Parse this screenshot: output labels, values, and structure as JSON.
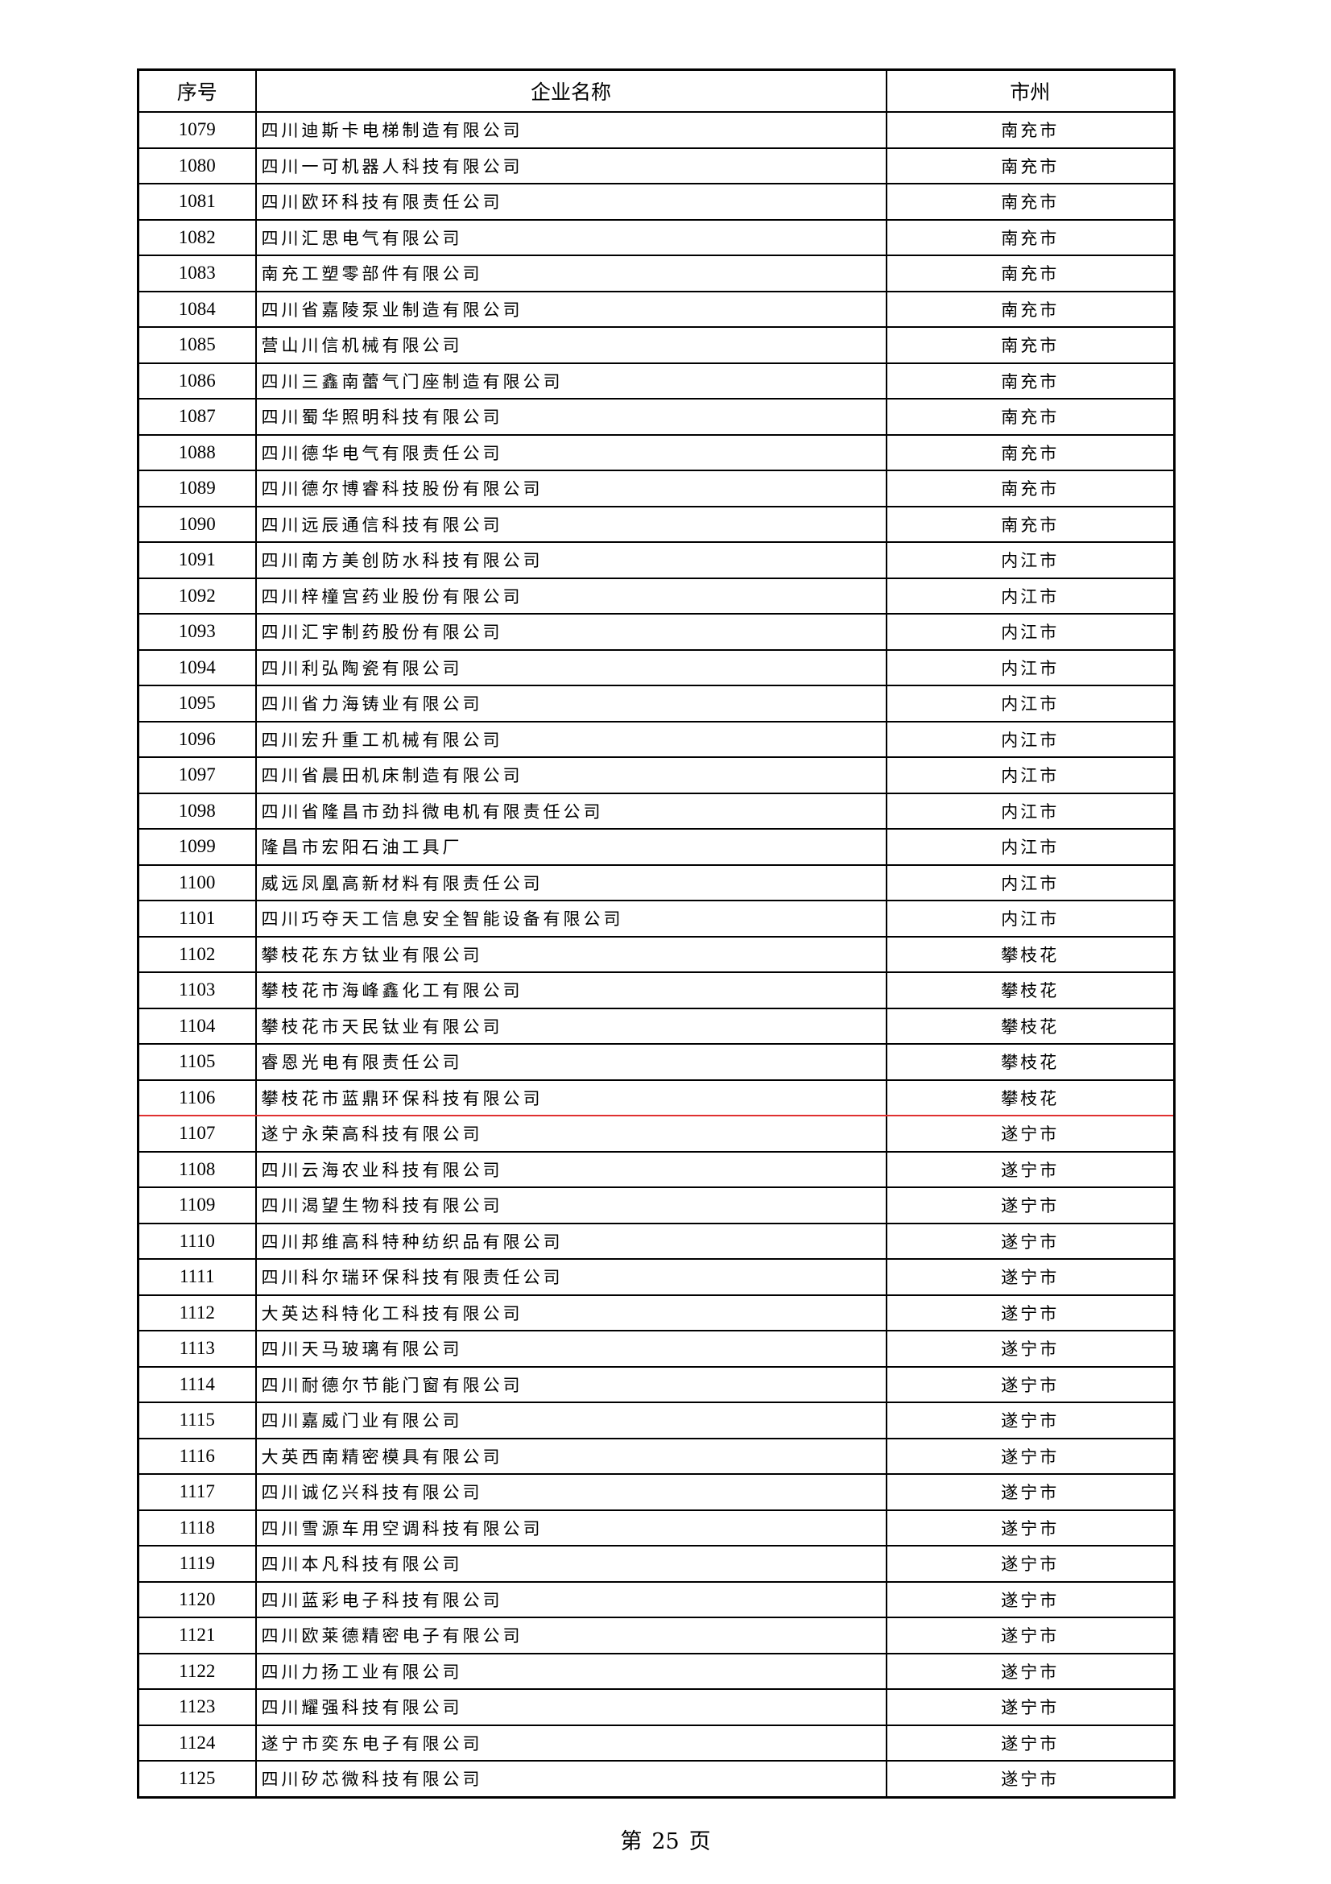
{
  "table": {
    "headers": [
      "序号",
      "企业名称",
      "市州"
    ],
    "highlight_color": "#e03030",
    "highlighted_row": "1106",
    "rows": [
      {
        "no": "1079",
        "name": "四川迪斯卡电梯制造有限公司",
        "city": "南充市"
      },
      {
        "no": "1080",
        "name": "四川一可机器人科技有限公司",
        "city": "南充市"
      },
      {
        "no": "1081",
        "name": "四川欧环科技有限责任公司",
        "city": "南充市"
      },
      {
        "no": "1082",
        "name": "四川汇思电气有限公司",
        "city": "南充市"
      },
      {
        "no": "1083",
        "name": "南充工塑零部件有限公司",
        "city": "南充市"
      },
      {
        "no": "1084",
        "name": "四川省嘉陵泵业制造有限公司",
        "city": "南充市"
      },
      {
        "no": "1085",
        "name": "营山川信机械有限公司",
        "city": "南充市"
      },
      {
        "no": "1086",
        "name": "四川三鑫南蕾气门座制造有限公司",
        "city": "南充市"
      },
      {
        "no": "1087",
        "name": "四川蜀华照明科技有限公司",
        "city": "南充市"
      },
      {
        "no": "1088",
        "name": "四川德华电气有限责任公司",
        "city": "南充市"
      },
      {
        "no": "1089",
        "name": "四川德尔博睿科技股份有限公司",
        "city": "南充市"
      },
      {
        "no": "1090",
        "name": "四川远辰通信科技有限公司",
        "city": "南充市"
      },
      {
        "no": "1091",
        "name": "四川南方美创防水科技有限公司",
        "city": "内江市"
      },
      {
        "no": "1092",
        "name": "四川梓橦宫药业股份有限公司",
        "city": "内江市"
      },
      {
        "no": "1093",
        "name": "四川汇宇制药股份有限公司",
        "city": "内江市"
      },
      {
        "no": "1094",
        "name": "四川利弘陶瓷有限公司",
        "city": "内江市"
      },
      {
        "no": "1095",
        "name": "四川省力海铸业有限公司",
        "city": "内江市"
      },
      {
        "no": "1096",
        "name": "四川宏升重工机械有限公司",
        "city": "内江市"
      },
      {
        "no": "1097",
        "name": "四川省晨田机床制造有限公司",
        "city": "内江市"
      },
      {
        "no": "1098",
        "name": "四川省隆昌市劲抖微电机有限责任公司",
        "city": "内江市"
      },
      {
        "no": "1099",
        "name": "隆昌市宏阳石油工具厂",
        "city": "内江市"
      },
      {
        "no": "1100",
        "name": "威远凤凰高新材料有限责任公司",
        "city": "内江市"
      },
      {
        "no": "1101",
        "name": "四川巧夺天工信息安全智能设备有限公司",
        "city": "内江市"
      },
      {
        "no": "1102",
        "name": "攀枝花东方钛业有限公司",
        "city": "攀枝花"
      },
      {
        "no": "1103",
        "name": "攀枝花市海峰鑫化工有限公司",
        "city": "攀枝花"
      },
      {
        "no": "1104",
        "name": "攀枝花市天民钛业有限公司",
        "city": "攀枝花"
      },
      {
        "no": "1105",
        "name": "睿恩光电有限责任公司",
        "city": "攀枝花"
      },
      {
        "no": "1106",
        "name": "攀枝花市蓝鼎环保科技有限公司",
        "city": "攀枝花"
      },
      {
        "no": "1107",
        "name": "遂宁永荣高科技有限公司",
        "city": "遂宁市"
      },
      {
        "no": "1108",
        "name": "四川云海农业科技有限公司",
        "city": "遂宁市"
      },
      {
        "no": "1109",
        "name": "四川渴望生物科技有限公司",
        "city": "遂宁市"
      },
      {
        "no": "1110",
        "name": "四川邦维高科特种纺织品有限公司",
        "city": "遂宁市"
      },
      {
        "no": "1111",
        "name": "四川科尔瑞环保科技有限责任公司",
        "city": "遂宁市"
      },
      {
        "no": "1112",
        "name": "大英达科特化工科技有限公司",
        "city": "遂宁市"
      },
      {
        "no": "1113",
        "name": "四川天马玻璃有限公司",
        "city": "遂宁市"
      },
      {
        "no": "1114",
        "name": "四川耐德尔节能门窗有限公司",
        "city": "遂宁市"
      },
      {
        "no": "1115",
        "name": "四川嘉威门业有限公司",
        "city": "遂宁市"
      },
      {
        "no": "1116",
        "name": "大英西南精密模具有限公司",
        "city": "遂宁市"
      },
      {
        "no": "1117",
        "name": "四川诚亿兴科技有限公司",
        "city": "遂宁市"
      },
      {
        "no": "1118",
        "name": "四川雪源车用空调科技有限公司",
        "city": "遂宁市"
      },
      {
        "no": "1119",
        "name": "四川本凡科技有限公司",
        "city": "遂宁市"
      },
      {
        "no": "1120",
        "name": "四川蓝彩电子科技有限公司",
        "city": "遂宁市"
      },
      {
        "no": "1121",
        "name": "四川欧莱德精密电子有限公司",
        "city": "遂宁市"
      },
      {
        "no": "1122",
        "name": "四川力扬工业有限公司",
        "city": "遂宁市"
      },
      {
        "no": "1123",
        "name": "四川耀强科技有限公司",
        "city": "遂宁市"
      },
      {
        "no": "1124",
        "name": "遂宁市奕东电子有限公司",
        "city": "遂宁市"
      },
      {
        "no": "1125",
        "name": "四川矽芯微科技有限公司",
        "city": "遂宁市"
      }
    ]
  },
  "footer": {
    "prefix": "第",
    "page": "25",
    "suffix": "页"
  }
}
